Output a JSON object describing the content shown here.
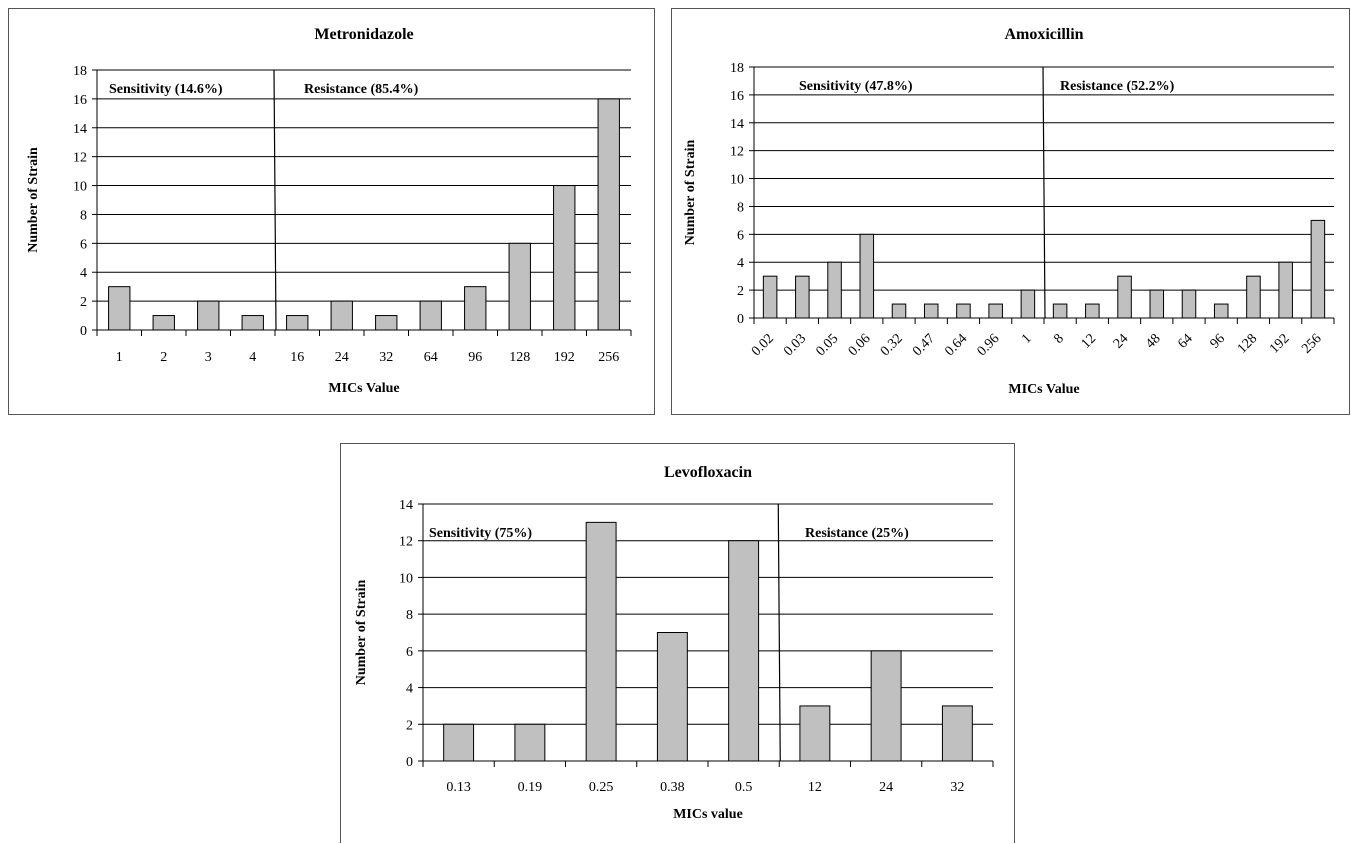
{
  "chart_data": [
    {
      "type": "bar",
      "title": "Metronidazole",
      "xlabel": "MICs  Value",
      "ylabel": "Number  of Strain",
      "categories": [
        "1",
        "2",
        "3",
        "4",
        "16",
        "24",
        "32",
        "64",
        "96",
        "128",
        "192",
        "256"
      ],
      "values": [
        3,
        1,
        2,
        1,
        1,
        2,
        1,
        2,
        3,
        6,
        10,
        16
      ],
      "ylim": [
        0,
        18
      ],
      "yticks": [
        "0",
        "2",
        "4",
        "6",
        "8",
        "10",
        "12",
        "14",
        "16",
        "18"
      ],
      "grid": true,
      "annotations": [
        "Sensitivity  (14.6%)",
        "Resistance (85.4%)"
      ],
      "threshold_after_index": 3
    },
    {
      "type": "bar",
      "title": "Amoxicillin",
      "xlabel": "MICs  Value",
      "ylabel": "Number  of Strain",
      "categories": [
        "0.02",
        "0.03",
        "0.05",
        "0.06",
        "0.32",
        "0.47",
        "0.64",
        "0.96",
        "1",
        "8",
        "12",
        "24",
        "48",
        "64",
        "96",
        "128",
        "192",
        "256"
      ],
      "values": [
        3,
        3,
        4,
        6,
        1,
        1,
        1,
        1,
        2,
        1,
        1,
        3,
        2,
        2,
        1,
        3,
        4,
        7
      ],
      "ylim": [
        0,
        18
      ],
      "yticks": [
        "0",
        "2",
        "4",
        "6",
        "8",
        "10",
        "12",
        "14",
        "16",
        "18"
      ],
      "grid": true,
      "annotations": [
        "Sensitivity  (47.8%)",
        "Resistance (52.2%)"
      ],
      "threshold_after_index": 8
    },
    {
      "type": "bar",
      "title": "Levofloxacin",
      "xlabel": "MICs value",
      "ylabel": "Number of Strain",
      "categories": [
        "0.13",
        "0.19",
        "0.25",
        "0.38",
        "0.5",
        "12",
        "24",
        "32"
      ],
      "values": [
        2,
        2,
        13,
        7,
        12,
        3,
        6,
        3
      ],
      "ylim": [
        0,
        14
      ],
      "yticks": [
        "0",
        "2",
        "4",
        "6",
        "8",
        "10",
        "12",
        "14"
      ],
      "grid": true,
      "annotations": [
        "Sensitivity  (75%)",
        "Resistance (25%)"
      ],
      "threshold_after_index": 4
    }
  ]
}
